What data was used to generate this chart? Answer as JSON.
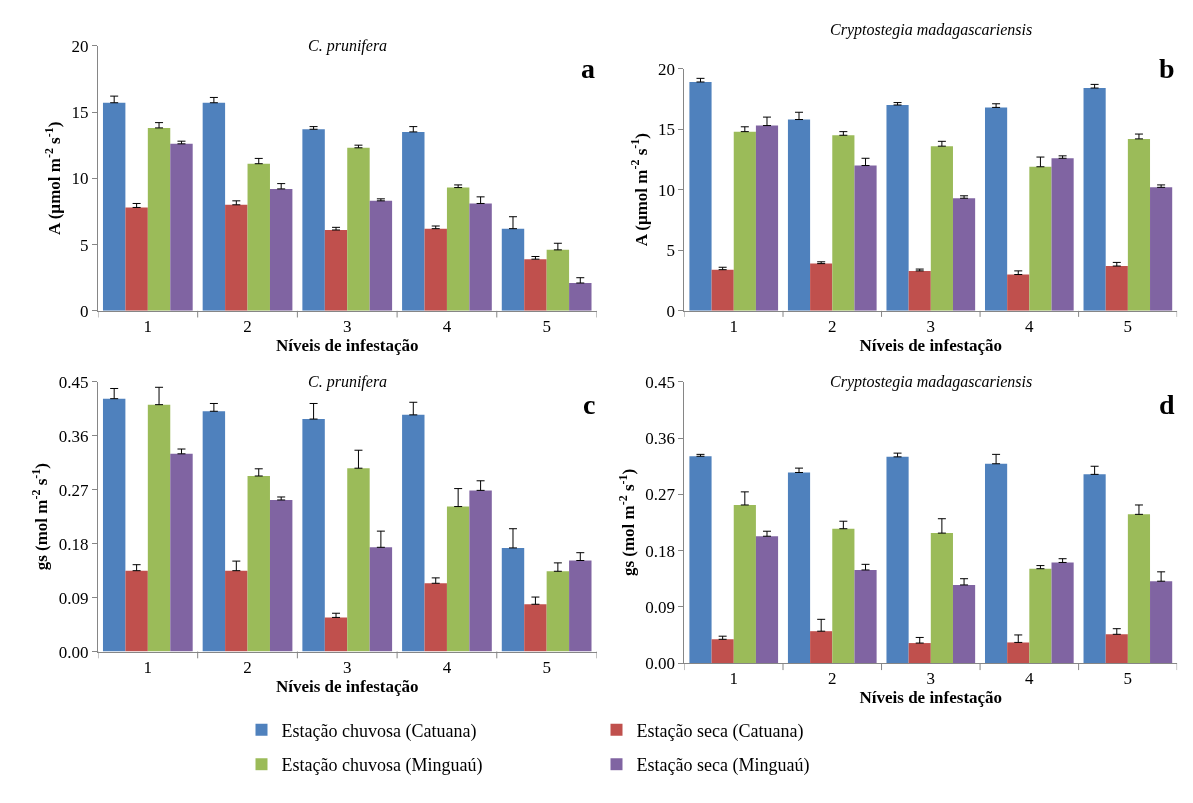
{
  "chart_data": [
    {
      "type": "bar",
      "title": "C. prunifera",
      "xlabel": "Níveis de infestação",
      "ylabel": "A (µmol m$^{-2}$ s$^{-1}$)",
      "categories": [
        "1",
        "2",
        "3",
        "4",
        "5"
      ],
      "ylim": [
        0,
        20
      ],
      "yticks": [
        0,
        5,
        10,
        15,
        20
      ],
      "legend": "bottom",
      "annotations": [
        "a"
      ],
      "series": [
        {
          "name": "Estação chuvosa (Catuana)",
          "color": "#4f81bd",
          "values": [
            15.7,
            15.7,
            13.7,
            13.5,
            6.2
          ],
          "errors": [
            [
              15.7,
              16.2
            ],
            [
              15.7,
              16.1
            ],
            [
              13.7,
              13.9
            ],
            [
              13.5,
              13.9
            ],
            [
              6.2,
              7.1
            ]
          ]
        },
        {
          "name": "Estação seca (Catuana)",
          "color": "#c0504d",
          "values": [
            7.8,
            8.0,
            6.1,
            6.2,
            3.9
          ],
          "errors": [
            [
              7.8,
              8.1
            ],
            [
              8.0,
              8.3
            ],
            [
              6.1,
              6.3
            ],
            [
              6.2,
              6.4
            ],
            [
              3.9,
              4.1
            ]
          ]
        },
        {
          "name": "Estação chuvosa (Minguaú)",
          "color": "#9bbb59",
          "values": [
            13.8,
            11.1,
            12.3,
            9.3,
            4.6
          ],
          "errors": [
            [
              13.8,
              14.2
            ],
            [
              11.1,
              11.5
            ],
            [
              12.3,
              12.5
            ],
            [
              9.3,
              9.5
            ],
            [
              4.6,
              5.1
            ]
          ]
        },
        {
          "name": "Estação seca (Minguaú)",
          "color": "#8064a2",
          "values": [
            12.6,
            9.2,
            8.3,
            8.1,
            2.1
          ],
          "errors": [
            [
              12.6,
              12.8
            ],
            [
              9.2,
              9.6
            ],
            [
              8.3,
              8.45
            ],
            [
              8.1,
              8.6
            ],
            [
              2.1,
              2.5
            ]
          ]
        }
      ]
    },
    {
      "type": "bar",
      "title": "Cryptostegia madagascariensis",
      "xlabel": "Níveis de infestação",
      "ylabel": "A (µmol m$^{-2}$ s$^{-1}$)",
      "categories": [
        "1",
        "2",
        "3",
        "4",
        "5"
      ],
      "ylim": [
        0,
        20
      ],
      "yticks": [
        0,
        5,
        10,
        15,
        20
      ],
      "legend": "bottom",
      "annotations": [
        "b"
      ],
      "series": [
        {
          "name": "Estação chuvosa (Catuana)",
          "color": "#4f81bd",
          "values": [
            18.9,
            15.8,
            17.0,
            16.8,
            18.4
          ],
          "errors": [
            [
              18.9,
              19.2
            ],
            [
              15.8,
              16.4
            ],
            [
              17.0,
              17.2
            ],
            [
              16.8,
              17.1
            ],
            [
              18.4,
              18.7
            ]
          ]
        },
        {
          "name": "Estação seca (Catuana)",
          "color": "#c0504d",
          "values": [
            3.4,
            3.9,
            3.3,
            3.0,
            3.7
          ],
          "errors": [
            [
              3.4,
              3.6
            ],
            [
              3.9,
              4.05
            ],
            [
              3.3,
              3.45
            ],
            [
              3.0,
              3.3
            ],
            [
              3.7,
              4.0
            ]
          ]
        },
        {
          "name": "Estação chuvosa (Minguaú)",
          "color": "#9bbb59",
          "values": [
            14.8,
            14.5,
            13.6,
            11.9,
            14.2
          ],
          "errors": [
            [
              14.8,
              15.2
            ],
            [
              14.5,
              14.8
            ],
            [
              13.6,
              14.0
            ],
            [
              11.9,
              12.7
            ],
            [
              14.2,
              14.6
            ]
          ]
        },
        {
          "name": "Estação seca (Minguaú)",
          "color": "#8064a2",
          "values": [
            15.3,
            12.0,
            9.3,
            12.6,
            10.2
          ],
          "errors": [
            [
              15.3,
              16.0
            ],
            [
              12.0,
              12.6
            ],
            [
              9.3,
              9.5
            ],
            [
              12.6,
              12.8
            ],
            [
              10.2,
              10.4
            ]
          ]
        }
      ]
    },
    {
      "type": "bar",
      "title": "C. prunifera",
      "xlabel": "Níveis de infestação",
      "ylabel": "gs (mol m$^{-2}$ s$^{-1}$)",
      "categories": [
        "1",
        "2",
        "3",
        "4",
        "5"
      ],
      "ylim": [
        0,
        0.45
      ],
      "yticks": [
        {
          "value": 0,
          "label": "0.00"
        },
        {
          "value": 0.09,
          "label": "0.09"
        },
        {
          "value": 0.18,
          "label": "0.18"
        },
        {
          "value": 0.27,
          "label": "0.27"
        },
        {
          "value": 0.36,
          "label": "0.36"
        },
        {
          "value": 0.45,
          "label": "0.45"
        }
      ],
      "legend": "bottom",
      "annotations": [
        "c"
      ],
      "series": [
        {
          "name": "Estação chuvosa (Catuana)",
          "color": "#4f81bd",
          "values": [
            0.422,
            0.401,
            0.388,
            0.395,
            0.173
          ],
          "errors": [
            [
              0.422,
              0.439
            ],
            [
              0.401,
              0.414
            ],
            [
              0.388,
              0.414
            ],
            [
              0.395,
              0.416
            ],
            [
              0.173,
              0.205
            ]
          ]
        },
        {
          "name": "Estação seca (Catuana)",
          "color": "#c0504d",
          "values": [
            0.135,
            0.135,
            0.057,
            0.114,
            0.079
          ],
          "errors": [
            [
              0.135,
              0.145
            ],
            [
              0.135,
              0.151
            ],
            [
              0.057,
              0.064
            ],
            [
              0.114,
              0.123
            ],
            [
              0.079,
              0.091
            ]
          ]
        },
        {
          "name": "Estação chuvosa (Minguaú)",
          "color": "#9bbb59",
          "values": [
            0.412,
            0.293,
            0.306,
            0.242,
            0.134
          ],
          "errors": [
            [
              0.412,
              0.441
            ],
            [
              0.293,
              0.305
            ],
            [
              0.306,
              0.336
            ],
            [
              0.242,
              0.272
            ],
            [
              0.134,
              0.148
            ]
          ]
        },
        {
          "name": "Estação seca (Minguaú)",
          "color": "#8064a2",
          "values": [
            0.33,
            0.253,
            0.174,
            0.269,
            0.152
          ],
          "errors": [
            [
              0.33,
              0.338
            ],
            [
              0.253,
              0.258
            ],
            [
              0.174,
              0.201
            ],
            [
              0.269,
              0.285
            ],
            [
              0.152,
              0.165
            ]
          ]
        }
      ]
    },
    {
      "type": "bar",
      "title": "Cryptostegia madagascariensis",
      "xlabel": "Níveis de infestação",
      "ylabel": "gs (mol m$^{-2}$ s$^{-1}$)",
      "categories": [
        "1",
        "2",
        "3",
        "4",
        "5"
      ],
      "ylim": [
        0,
        0.45
      ],
      "yticks": [
        {
          "value": 0,
          "label": "0.00"
        },
        {
          "value": 0.09,
          "label": "0.09"
        },
        {
          "value": 0.18,
          "label": "0.18"
        },
        {
          "value": 0.27,
          "label": "0.27"
        },
        {
          "value": 0.36,
          "label": "0.36"
        },
        {
          "value": 0.45,
          "label": "0.45"
        }
      ],
      "legend": "bottom",
      "annotations": [
        "d"
      ],
      "series": [
        {
          "name": "Estação chuvosa (Catuana)",
          "color": "#4f81bd",
          "values": [
            0.331,
            0.305,
            0.33,
            0.319,
            0.302
          ],
          "errors": [
            [
              0.331,
              0.334
            ],
            [
              0.305,
              0.312
            ],
            [
              0.33,
              0.336
            ],
            [
              0.319,
              0.334
            ],
            [
              0.302,
              0.315
            ]
          ]
        },
        {
          "name": "Estação seca (Catuana)",
          "color": "#c0504d",
          "values": [
            0.038,
            0.051,
            0.032,
            0.033,
            0.046
          ],
          "errors": [
            [
              0.038,
              0.043
            ],
            [
              0.051,
              0.07
            ],
            [
              0.032,
              0.041
            ],
            [
              0.033,
              0.045
            ],
            [
              0.046,
              0.055
            ]
          ]
        },
        {
          "name": "Estação chuvosa (Minguaú)",
          "color": "#9bbb59",
          "values": [
            0.253,
            0.215,
            0.208,
            0.151,
            0.238
          ],
          "errors": [
            [
              0.253,
              0.274
            ],
            [
              0.215,
              0.227
            ],
            [
              0.208,
              0.231
            ],
            [
              0.151,
              0.156
            ],
            [
              0.238,
              0.253
            ]
          ]
        },
        {
          "name": "Estação seca (Minguaú)",
          "color": "#8064a2",
          "values": [
            0.203,
            0.149,
            0.125,
            0.161,
            0.131
          ],
          "errors": [
            [
              0.203,
              0.211
            ],
            [
              0.149,
              0.158
            ],
            [
              0.125,
              0.135
            ],
            [
              0.161,
              0.167
            ],
            [
              0.131,
              0.146
            ]
          ]
        }
      ]
    }
  ]
}
